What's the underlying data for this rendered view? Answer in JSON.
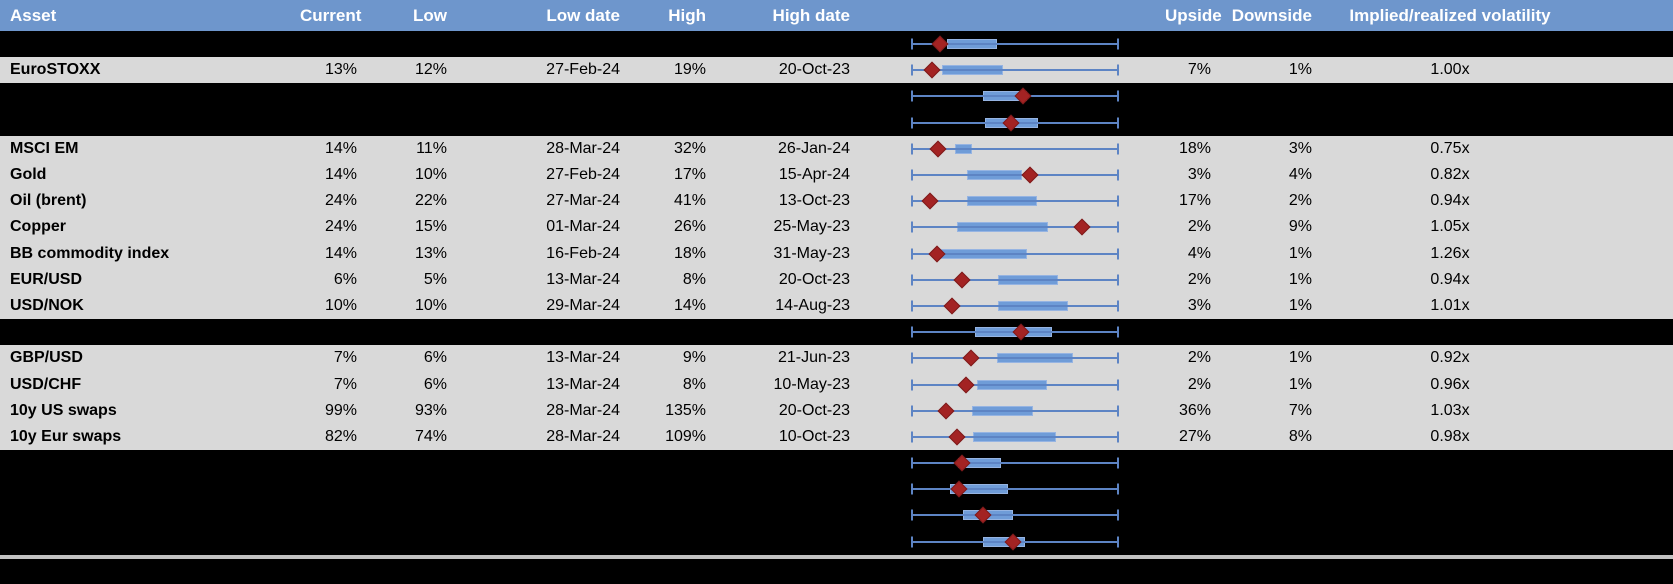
{
  "columns": [
    {
      "key": "asset",
      "label": "Asset"
    },
    {
      "key": "current",
      "label": "Current"
    },
    {
      "key": "low",
      "label": "Low"
    },
    {
      "key": "low_date",
      "label": "Low date"
    },
    {
      "key": "high",
      "label": "High"
    },
    {
      "key": "high_date",
      "label": "High date"
    },
    {
      "key": "plot",
      "label": ""
    },
    {
      "key": "upside",
      "label": "Upside"
    },
    {
      "key": "downside",
      "label": "Downside"
    },
    {
      "key": "ivrv",
      "label": "Implied/realized volatility"
    }
  ],
  "rows": [
    {
      "type": "spacer",
      "plot": {
        "box": [
          0.168,
          0.411
        ],
        "marker": 0.136
      }
    },
    {
      "type": "data",
      "asset": "EuroSTOXX",
      "current": "13%",
      "low": "12%",
      "low_date": "27-Feb-24",
      "high": "19%",
      "high_date": "20-Oct-23",
      "upside": "7%",
      "downside": "1%",
      "ivrv": "1.00x",
      "plot": {
        "box": [
          0.144,
          0.443
        ],
        "marker": 0.099
      }
    },
    {
      "type": "spacer",
      "plot": {
        "box": [
          0.346,
          0.557
        ],
        "marker": 0.537
      }
    },
    {
      "type": "spacer",
      "plot": {
        "box": [
          0.354,
          0.613
        ],
        "marker": 0.479
      }
    },
    {
      "type": "data",
      "asset": "MSCI EM",
      "current": "14%",
      "low": "11%",
      "low_date": "28-Mar-24",
      "high": "32%",
      "high_date": "26-Jan-24",
      "upside": "18%",
      "downside": "3%",
      "ivrv": "0.75x",
      "plot": {
        "box": [
          0.209,
          0.293
        ],
        "marker": 0.125
      }
    },
    {
      "type": "data",
      "asset": "Gold",
      "current": "14%",
      "low": "10%",
      "low_date": "27-Feb-24",
      "high": "17%",
      "high_date": "15-Apr-24",
      "upside": "3%",
      "downside": "4%",
      "ivrv": "0.82x",
      "plot": {
        "box": [
          0.265,
          0.533
        ],
        "marker": 0.573
      }
    },
    {
      "type": "data",
      "asset": "Oil (brent)",
      "current": "24%",
      "low": "22%",
      "low_date": "27-Mar-24",
      "high": "41%",
      "high_date": "13-Oct-23",
      "upside": "17%",
      "downside": "2%",
      "ivrv": "0.94x",
      "plot": {
        "box": [
          0.265,
          0.605
        ],
        "marker": 0.087
      }
    },
    {
      "type": "data",
      "asset": "Copper",
      "current": "24%",
      "low": "15%",
      "low_date": "01-Mar-24",
      "high": "26%",
      "high_date": "25-May-23",
      "upside": "2%",
      "downside": "9%",
      "ivrv": "1.05x",
      "plot": {
        "box": [
          0.217,
          0.662
        ],
        "marker": 0.824
      }
    },
    {
      "type": "data",
      "asset": "BB commodity index",
      "current": "14%",
      "low": "13%",
      "low_date": "16-Feb-24",
      "high": "18%",
      "high_date": "31-May-23",
      "upside": "4%",
      "downside": "1%",
      "ivrv": "1.26x",
      "plot": {
        "box": [
          0.126,
          0.557
        ],
        "marker": 0.123
      }
    },
    {
      "type": "data",
      "asset": "EUR/USD",
      "current": "6%",
      "low": "5%",
      "low_date": "13-Mar-24",
      "high": "8%",
      "high_date": "20-Oct-23",
      "upside": "2%",
      "downside": "1%",
      "ivrv": "0.94x",
      "plot": {
        "box": [
          0.419,
          0.71
        ],
        "marker": 0.244
      }
    },
    {
      "type": "data",
      "asset": "USD/NOK",
      "current": "10%",
      "low": "10%",
      "low_date": "29-Mar-24",
      "high": "14%",
      "high_date": "14-Aug-23",
      "upside": "3%",
      "downside": "1%",
      "ivrv": "1.01x",
      "plot": {
        "box": [
          0.419,
          0.759
        ],
        "marker": 0.196
      }
    },
    {
      "type": "spacer",
      "plot": {
        "box": [
          0.306,
          0.678
        ],
        "marker": 0.529
      }
    },
    {
      "type": "data",
      "asset": "GBP/USD",
      "current": "7%",
      "low": "6%",
      "low_date": "13-Mar-24",
      "high": "9%",
      "high_date": "21-Jun-23",
      "upside": "2%",
      "downside": "1%",
      "ivrv": "0.92x",
      "plot": {
        "box": [
          0.411,
          0.783
        ],
        "marker": 0.285
      }
    },
    {
      "type": "data",
      "asset": "USD/CHF",
      "current": "7%",
      "low": "6%",
      "low_date": "13-Mar-24",
      "high": "8%",
      "high_date": "10-May-23",
      "upside": "2%",
      "downside": "1%",
      "ivrv": "0.96x",
      "plot": {
        "box": [
          0.314,
          0.654
        ],
        "marker": 0.262
      }
    },
    {
      "type": "data",
      "asset": "10y US swaps",
      "current": "99%",
      "low": "93%",
      "low_date": "28-Mar-24",
      "high": "135%",
      "high_date": "20-Oct-23",
      "upside": "36%",
      "downside": "7%",
      "ivrv": "1.03x",
      "plot": {
        "box": [
          0.29,
          0.586
        ],
        "marker": 0.165
      }
    },
    {
      "type": "data",
      "asset": "10y Eur swaps",
      "current": "82%",
      "low": "74%",
      "low_date": "28-Mar-24",
      "high": "109%",
      "high_date": "10-Oct-23",
      "upside": "27%",
      "downside": "8%",
      "ivrv": "0.98x",
      "plot": {
        "box": [
          0.295,
          0.698
        ],
        "marker": 0.22
      }
    },
    {
      "type": "spacer",
      "plot": {
        "box": [
          0.225,
          0.432
        ],
        "marker": 0.243
      }
    },
    {
      "type": "spacer",
      "plot": {
        "box": [
          0.184,
          0.465
        ],
        "marker": 0.228
      }
    },
    {
      "type": "spacer",
      "plot": {
        "box": [
          0.249,
          0.492
        ],
        "marker": 0.346
      }
    },
    {
      "type": "spacer",
      "plot": {
        "box": [
          0.346,
          0.551
        ],
        "marker": 0.492
      }
    }
  ],
  "colors": {
    "header_bg": "#6e96cc",
    "row_gray": "#d9d9d9",
    "row_black": "#000000",
    "box_fill": "#6f9cd8",
    "whisker_line": "#5d84c4",
    "marker_red": "#a32323",
    "bottom_line_gray": "#c2c2c2"
  },
  "chart_data": {
    "type": "table",
    "columns": [
      "Asset",
      "Current",
      "Low",
      "Low date",
      "High",
      "High date",
      "Upside",
      "Downside",
      "Implied/realized volatility"
    ],
    "rows": [
      [
        "EuroSTOXX",
        "13%",
        "12%",
        "27-Feb-24",
        "19%",
        "20-Oct-23",
        "7%",
        "1%",
        "1.00x"
      ],
      [
        "MSCI EM",
        "14%",
        "11%",
        "28-Mar-24",
        "32%",
        "26-Jan-24",
        "18%",
        "3%",
        "0.75x"
      ],
      [
        "Gold",
        "14%",
        "10%",
        "27-Feb-24",
        "17%",
        "15-Apr-24",
        "3%",
        "4%",
        "0.82x"
      ],
      [
        "Oil (brent)",
        "24%",
        "22%",
        "27-Mar-24",
        "41%",
        "13-Oct-23",
        "17%",
        "2%",
        "0.94x"
      ],
      [
        "Copper",
        "24%",
        "15%",
        "01-Mar-24",
        "26%",
        "25-May-23",
        "2%",
        "9%",
        "1.05x"
      ],
      [
        "BB commodity index",
        "14%",
        "13%",
        "16-Feb-24",
        "18%",
        "31-May-23",
        "4%",
        "1%",
        "1.26x"
      ],
      [
        "EUR/USD",
        "6%",
        "5%",
        "13-Mar-24",
        "8%",
        "20-Oct-23",
        "2%",
        "1%",
        "0.94x"
      ],
      [
        "USD/NOK",
        "10%",
        "10%",
        "29-Mar-24",
        "14%",
        "14-Aug-23",
        "3%",
        "1%",
        "1.01x"
      ],
      [
        "GBP/USD",
        "7%",
        "6%",
        "13-Mar-24",
        "9%",
        "21-Jun-23",
        "2%",
        "1%",
        "0.92x"
      ],
      [
        "USD/CHF",
        "7%",
        "6%",
        "13-Mar-24",
        "8%",
        "10-May-23",
        "2%",
        "1%",
        "0.96x"
      ],
      [
        "10y US swaps",
        "99%",
        "93%",
        "28-Mar-24",
        "135%",
        "20-Oct-23",
        "36%",
        "7%",
        "1.03x"
      ],
      [
        "10y Eur swaps",
        "82%",
        "74%",
        "28-Mar-24",
        "109%",
        "10-Oct-23",
        "27%",
        "8%",
        "0.98x"
      ]
    ],
    "embedded_boxplots": {
      "description": "Each table row contains a horizontal box-and-whisker glyph with a red diamond marker; axis is unlabeled and shared by all rows. Box edges and marker are given as fractions 0-1 of the whisker span (whiskers always span 0 to 1).",
      "glyphs": [
        {
          "row_label": "",
          "box": [
            0.168,
            0.411
          ],
          "marker": 0.136
        },
        {
          "row_label": "EuroSTOXX",
          "box": [
            0.144,
            0.443
          ],
          "marker": 0.099
        },
        {
          "row_label": "",
          "box": [
            0.346,
            0.557
          ],
          "marker": 0.537
        },
        {
          "row_label": "",
          "box": [
            0.354,
            0.613
          ],
          "marker": 0.479
        },
        {
          "row_label": "MSCI EM",
          "box": [
            0.209,
            0.293
          ],
          "marker": 0.125
        },
        {
          "row_label": "Gold",
          "box": [
            0.265,
            0.533
          ],
          "marker": 0.573
        },
        {
          "row_label": "Oil (brent)",
          "box": [
            0.265,
            0.605
          ],
          "marker": 0.087
        },
        {
          "row_label": "Copper",
          "box": [
            0.217,
            0.662
          ],
          "marker": 0.824
        },
        {
          "row_label": "BB commodity index",
          "box": [
            0.126,
            0.557
          ],
          "marker": 0.123
        },
        {
          "row_label": "EUR/USD",
          "box": [
            0.419,
            0.71
          ],
          "marker": 0.244
        },
        {
          "row_label": "USD/NOK",
          "box": [
            0.419,
            0.759
          ],
          "marker": 0.196
        },
        {
          "row_label": "",
          "box": [
            0.306,
            0.678
          ],
          "marker": 0.529
        },
        {
          "row_label": "GBP/USD",
          "box": [
            0.411,
            0.783
          ],
          "marker": 0.285
        },
        {
          "row_label": "USD/CHF",
          "box": [
            0.314,
            0.654
          ],
          "marker": 0.262
        },
        {
          "row_label": "10y US swaps",
          "box": [
            0.29,
            0.586
          ],
          "marker": 0.165
        },
        {
          "row_label": "10y Eur swaps",
          "box": [
            0.295,
            0.698
          ],
          "marker": 0.22
        },
        {
          "row_label": "",
          "box": [
            0.225,
            0.432
          ],
          "marker": 0.243
        },
        {
          "row_label": "",
          "box": [
            0.184,
            0.465
          ],
          "marker": 0.228
        },
        {
          "row_label": "",
          "box": [
            0.249,
            0.492
          ],
          "marker": 0.346
        },
        {
          "row_label": "",
          "box": [
            0.346,
            0.551
          ],
          "marker": 0.492
        }
      ]
    }
  }
}
